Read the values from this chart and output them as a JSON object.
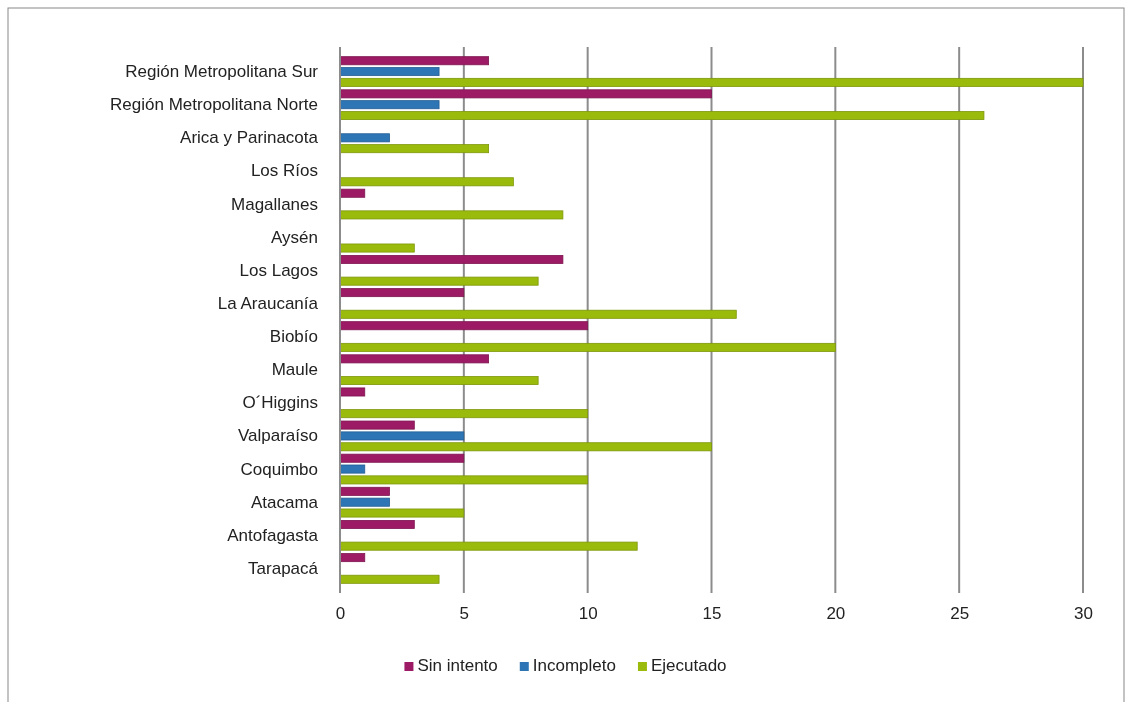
{
  "chart_data": {
    "type": "bar",
    "orientation": "horizontal",
    "categories": [
      "Región Metropolitana Sur",
      "Región Metropolitana Norte",
      "Arica y Parinacota",
      "Los Ríos",
      "Magallanes",
      "Aysén",
      "Los Lagos",
      "La Araucanía",
      "Biobío",
      "Maule",
      "O´Higgins",
      "Valparaíso",
      "Coquimbo",
      "Atacama",
      "Antofagasta",
      "Tarapacá"
    ],
    "series": [
      {
        "name": "Sin intento",
        "color": "#9c1b64",
        "values": [
          6,
          15,
          0,
          0,
          1,
          0,
          9,
          5,
          10,
          6,
          1,
          3,
          5,
          2,
          3,
          1
        ]
      },
      {
        "name": "Incompleto",
        "color": "#2e75b6",
        "values": [
          4,
          4,
          2,
          0,
          0,
          0,
          0,
          0,
          0,
          0,
          0,
          5,
          1,
          2,
          0,
          0
        ]
      },
      {
        "name": "Ejecutado",
        "color": "#9bbb0c",
        "values": [
          30,
          26,
          6,
          7,
          9,
          3,
          8,
          16,
          20,
          8,
          10,
          15,
          10,
          5,
          12,
          4
        ]
      }
    ],
    "xlim": [
      0,
      30
    ],
    "xticks": [
      0,
      5,
      10,
      15,
      20,
      25,
      30
    ],
    "grid": "x",
    "legend": "bottom"
  }
}
